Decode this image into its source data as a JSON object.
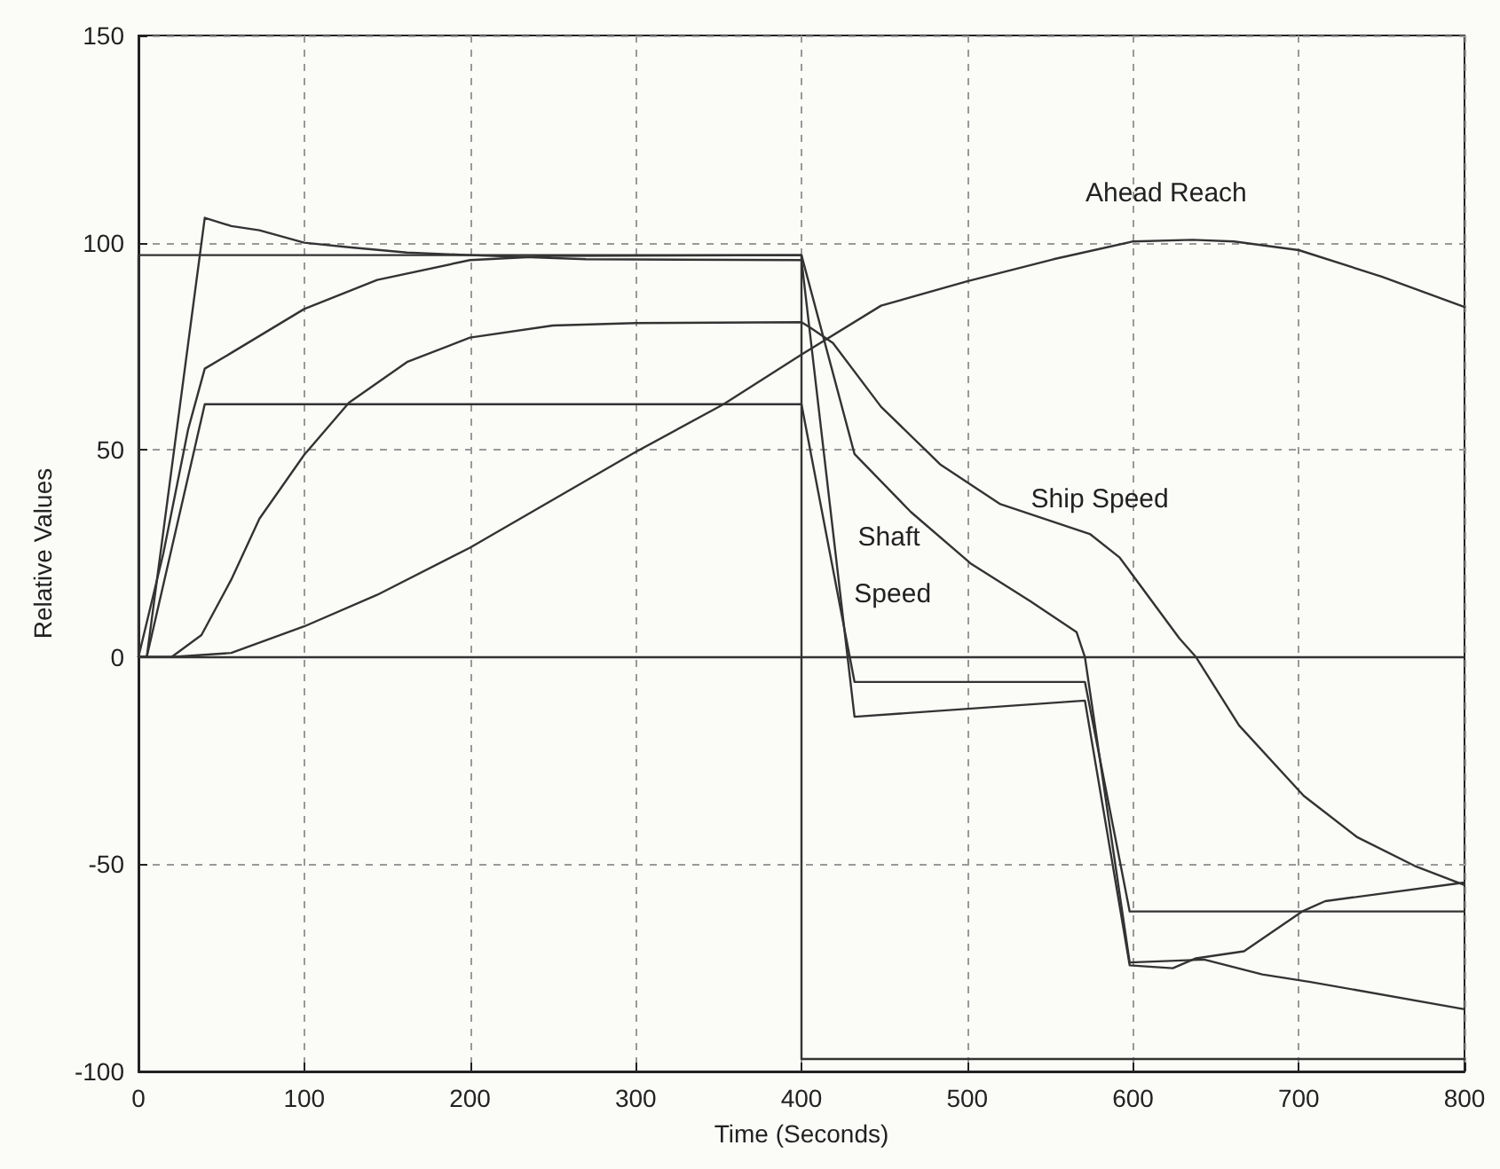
{
  "chart_data": {
    "type": "line",
    "xlabel": "Time (Seconds)",
    "ylabel": "Relative Values",
    "xlim": [
      0,
      800
    ],
    "xticks": [
      0,
      100,
      200,
      300,
      400,
      500,
      600,
      700,
      800
    ],
    "ylim": [
      -100,
      150
    ],
    "yticks": [
      -100,
      -50,
      0,
      50,
      100,
      150
    ],
    "grid": true,
    "legend": false,
    "marker": "none",
    "line_style": "solid",
    "ref_lines": [
      {
        "axis": "y",
        "value": 0,
        "color": "#333333"
      }
    ],
    "series": [
      {
        "color": "#333333",
        "x": [
          0,
          0,
          400,
          400,
          800
        ],
        "values": [
          0,
          97,
          97,
          -97,
          -97
        ]
      },
      {
        "color": "#333333",
        "x": [
          0,
          5,
          40,
          56,
          73,
          100,
          127,
          162,
          200,
          270,
          400,
          432,
          571,
          598,
          624,
          638,
          667,
          702,
          716,
          800
        ],
        "values": [
          0,
          0,
          106,
          104,
          103,
          100,
          98.9,
          97.6,
          97,
          96,
          95.8,
          -14.4,
          -10.5,
          -74.4,
          -75.1,
          -72.7,
          -71,
          -61.4,
          -58.9,
          -54.4
        ]
      },
      {
        "color": "#333333",
        "x": [
          0,
          5,
          40,
          400,
          432,
          571,
          598,
          800
        ],
        "values": [
          0,
          0,
          61,
          61,
          -6,
          -6,
          -61.4,
          -61.4
        ]
      },
      {
        "name": "Shaft Speed",
        "color": "#333333",
        "x": [
          0,
          15,
          30,
          40,
          56,
          100,
          144,
          200,
          250,
          400,
          432,
          466,
          502,
          538,
          566,
          571,
          598,
          643,
          678,
          707,
          800
        ],
        "values": [
          0,
          25,
          55,
          69.6,
          73.4,
          84,
          91,
          95.8,
          96.8,
          97,
          49,
          35,
          22.6,
          13.5,
          6,
          0,
          -73.7,
          -73,
          -76.6,
          -78.4,
          -85
        ]
      },
      {
        "name": "Ship Speed",
        "color": "#333333",
        "x": [
          0,
          20,
          38,
          56,
          73,
          100,
          127,
          162,
          200,
          250,
          300,
          400,
          405,
          419,
          448,
          484,
          520,
          574,
          592,
          628,
          638,
          664,
          703,
          735,
          770,
          800
        ],
        "values": [
          0,
          0,
          5.3,
          18.7,
          33.4,
          48.8,
          61.4,
          71.2,
          77.1,
          80,
          80.6,
          80.8,
          79.6,
          75.8,
          60.4,
          46.4,
          36.9,
          29.7,
          24,
          4.5,
          0,
          -16.5,
          -33.5,
          -43.4,
          -50.4,
          -55
        ]
      },
      {
        "name": "Ahead Reach",
        "color": "#333333",
        "x": [
          0,
          20,
          56,
          100,
          144,
          200,
          300,
          353,
          400,
          448,
          500,
          552,
          600,
          636,
          661,
          700,
          750,
          800
        ],
        "values": [
          0,
          0,
          1,
          7.4,
          15,
          26.4,
          49.5,
          61,
          73,
          84.8,
          90.7,
          96,
          100.3,
          100.7,
          100.3,
          98.2,
          91.8,
          84.5
        ]
      }
    ]
  }
}
